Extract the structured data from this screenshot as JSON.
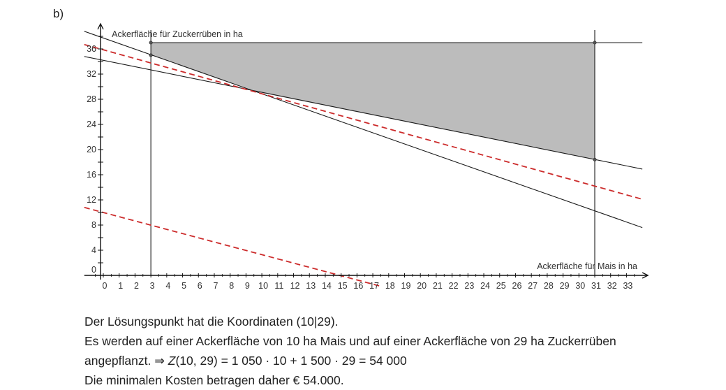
{
  "part_label": "b)",
  "chart_data": {
    "type": "line",
    "x_axis_label": "Ackerfläche für Mais in ha",
    "y_axis_label": "Ackerfläche für Zuckerrüben in ha",
    "x_ticks": [
      0,
      1,
      2,
      3,
      4,
      5,
      6,
      7,
      8,
      9,
      10,
      11,
      12,
      13,
      14,
      15,
      16,
      17,
      18,
      19,
      20,
      21,
      22,
      23,
      24,
      25,
      26,
      27,
      28,
      29,
      30,
      31,
      32,
      33
    ],
    "y_ticks": [
      0,
      4,
      8,
      12,
      16,
      20,
      24,
      28,
      32,
      36
    ],
    "xlim": [
      -1.2,
      34
    ],
    "ylim": [
      0,
      39
    ],
    "feasible_region": [
      [
        3,
        37
      ],
      [
        31,
        37
      ],
      [
        31,
        18.4
      ],
      [
        10,
        29
      ],
      [
        3,
        35
      ]
    ],
    "constraint_lines": [
      {
        "style": "solid",
        "points": [
          [
            -1.2,
            34.8
          ],
          [
            34,
            16.9
          ]
        ]
      },
      {
        "style": "solid",
        "points": [
          [
            -1.2,
            38.8
          ],
          [
            34,
            7.6
          ]
        ]
      },
      {
        "style": "solid",
        "points": [
          [
            3,
            0
          ],
          [
            3,
            39
          ]
        ]
      },
      {
        "style": "solid",
        "points": [
          [
            31,
            0
          ],
          [
            31,
            39
          ]
        ]
      },
      {
        "style": "solid",
        "points": [
          [
            3,
            37
          ],
          [
            34,
            37
          ]
        ]
      }
    ],
    "objective_lines": [
      {
        "style": "dashed",
        "color": "#cc2b2b",
        "points": [
          [
            -1.2,
            36.7
          ],
          [
            34,
            12.1
          ]
        ]
      },
      {
        "style": "dashed",
        "color": "#cc2b2b",
        "points": [
          [
            -1.2,
            10.8
          ],
          [
            17.6,
            -1.8
          ]
        ]
      }
    ],
    "marked_points": [
      [
        3,
        37
      ],
      [
        31,
        37
      ],
      [
        3,
        35
      ],
      [
        31,
        18.4
      ]
    ],
    "colors": {
      "region": "#bcbcbc",
      "axis": "#111111",
      "constraint": "#1a1a1a",
      "objective": "#cc2b2b"
    }
  },
  "solution": {
    "line1": "Der Lösungspunkt hat die Koordinaten (10|29).",
    "line2": "Es werden auf einer Ackerfläche von 10 ha Mais und auf einer Ackerfläche von 29 ha Zuckerrüben",
    "line3_prefix": "angepflanzt.  ⇒  ",
    "line3_func": "Z",
    "line3_rest": "(10, 29) = 1 050 · 10 + 1 500 · 29 = 54 000",
    "line4": "Die minimalen Kosten betragen daher € 54.000."
  }
}
